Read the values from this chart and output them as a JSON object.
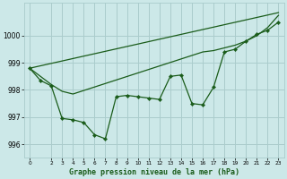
{
  "bg_color": "#cce8e8",
  "grid_color": "#aacccc",
  "line_color": "#1a5c1a",
  "title": "Graphe pression niveau de la mer (hPa)",
  "xlim": [
    -0.5,
    23.5
  ],
  "ylim": [
    995.5,
    1001.2
  ],
  "yticks": [
    996,
    997,
    998,
    999,
    1000
  ],
  "xticks": [
    0,
    2,
    3,
    4,
    5,
    6,
    7,
    8,
    9,
    10,
    11,
    12,
    13,
    14,
    15,
    16,
    17,
    18,
    19,
    20,
    21,
    22,
    23
  ],
  "line_jagged": {
    "x": [
      0,
      1,
      2,
      3,
      4,
      5,
      6,
      7,
      8,
      9,
      10,
      11,
      12,
      13,
      14,
      15,
      16,
      17,
      18,
      19,
      20,
      21,
      22,
      23
    ],
    "y": [
      998.8,
      998.35,
      998.15,
      996.95,
      996.9,
      996.8,
      996.35,
      996.2,
      997.75,
      997.8,
      997.75,
      997.7,
      997.65,
      998.5,
      998.55,
      997.5,
      997.45,
      998.1,
      999.4,
      999.5,
      999.8,
      1000.05,
      1000.2,
      1000.5
    ]
  },
  "line_upper": {
    "x": [
      0,
      23
    ],
    "y": [
      998.8,
      1000.85
    ]
  },
  "line_mid": {
    "x": [
      0,
      2,
      3,
      4,
      16,
      17,
      18,
      19,
      20,
      21,
      22,
      23
    ],
    "y": [
      998.8,
      998.2,
      997.95,
      997.85,
      999.4,
      999.45,
      999.55,
      999.65,
      999.8,
      1000.0,
      1000.3,
      1000.75
    ]
  }
}
